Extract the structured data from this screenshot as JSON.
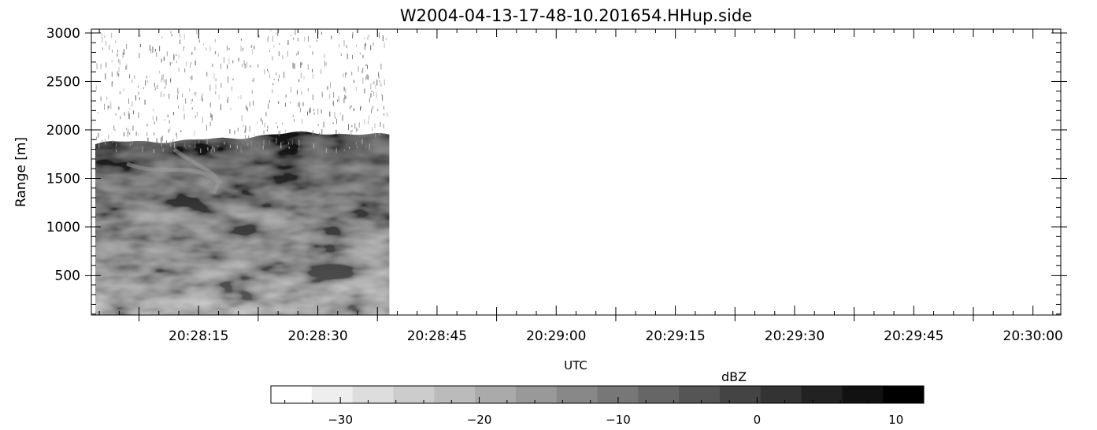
{
  "chart_data": {
    "type": "heatmap",
    "title": "W2004-04-13-17-48-10.201654.HHup.side",
    "xlabel": "UTC",
    "ylabel": "Range [m]",
    "x_ticks": [
      "20:28:15",
      "20:28:30",
      "20:28:45",
      "20:29:00",
      "20:29:15",
      "20:29:30",
      "20:29:45",
      "20:30:00"
    ],
    "x_tick_seconds": [
      15,
      30,
      45,
      60,
      75,
      90,
      105,
      120
    ],
    "xlim_seconds_from_2028": [
      1.5,
      123.5
    ],
    "y_ticks": [
      500,
      1000,
      1500,
      2000,
      2500,
      3000
    ],
    "ylim": [
      90,
      3040
    ],
    "data_extent": {
      "x_start": "20:28:02",
      "x_end": "20:28:39",
      "range_min_m": 90,
      "range_max_m": 3040,
      "cloud_top_m_approx": [
        1800,
        1950
      ],
      "intense_layer_m_approx": [
        900,
        1900
      ],
      "above_cloud": "sparse noise speckles"
    },
    "colorbar": {
      "label": "dBZ",
      "min": -35,
      "max": 12,
      "tick_values": [
        -30,
        -20,
        -10,
        0,
        10
      ],
      "tick_labels": [
        "−30",
        "−20",
        "−10",
        "0",
        "10"
      ],
      "colormap": "grayscale, white (low) to black (high)",
      "levels": 16
    }
  }
}
